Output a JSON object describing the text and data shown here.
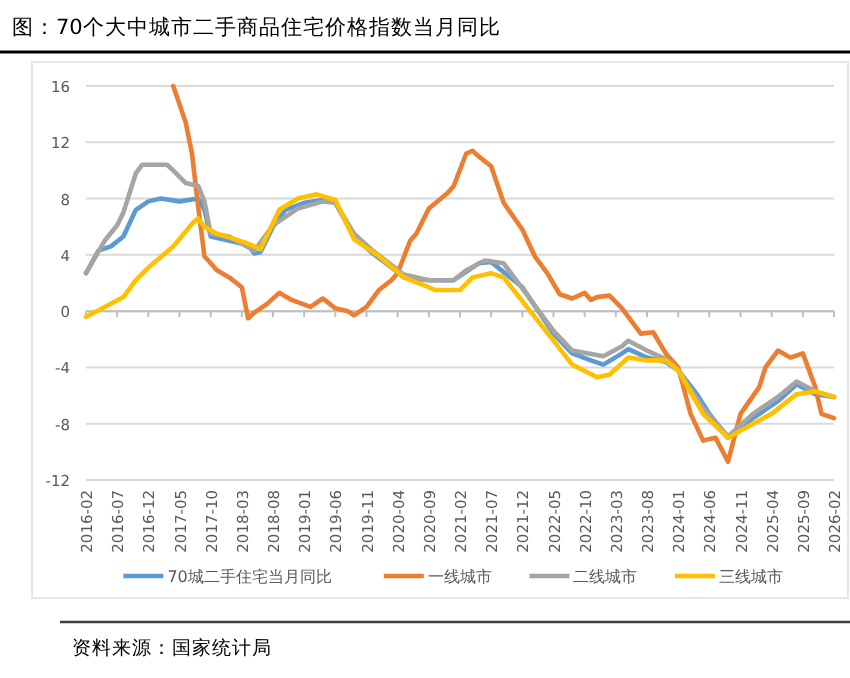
{
  "chart_data": {
    "type": "line",
    "title": "图：70个大中城市二手商品住宅价格指数当月同比",
    "annotations": [
      "资料来源：国家统计局"
    ],
    "xlim": [
      "2016-02",
      "2026-02"
    ],
    "xticks": [
      "2016-02",
      "2016-07",
      "2016-12",
      "2017-05",
      "2017-10",
      "2018-03",
      "2018-08",
      "2019-01",
      "2019-06",
      "2019-11",
      "2020-04",
      "2020-09",
      "2021-02",
      "2021-07",
      "2021-12",
      "2022-05",
      "2022-10",
      "2023-03",
      "2023-08",
      "2024-01",
      "2024-06",
      "2024-11",
      "2025-04",
      "2025-09",
      "2026-02"
    ],
    "ylim": [
      -12,
      16
    ],
    "yticks": [
      -12,
      -8,
      -4,
      0,
      4,
      8,
      12,
      16
    ],
    "grid": "y",
    "legend": "bottom",
    "marker": "none",
    "line_style": "solid",
    "series": [
      {
        "name": "70城二手住宅当月同比",
        "color": "#5b9bd5",
        "x": [
          "2016-02",
          "2016-04",
          "2016-06",
          "2016-08",
          "2016-10",
          "2016-12",
          "2017-02",
          "2017-05",
          "2017-08",
          "2017-09",
          "2017-10",
          "2018-01",
          "2018-04",
          "2018-05",
          "2018-06",
          "2018-08",
          "2018-10",
          "2019-01",
          "2019-04",
          "2019-06",
          "2019-09",
          "2019-12",
          "2020-03",
          "2020-05",
          "2020-09",
          "2021-01",
          "2021-05",
          "2021-07",
          "2021-12",
          "2022-05",
          "2022-08",
          "2022-11",
          "2023-01",
          "2023-04",
          "2023-05",
          "2023-08",
          "2023-11",
          "2024-01",
          "2024-04",
          "2024-06",
          "2024-09",
          "2025-01",
          "2025-05",
          "2025-08",
          "2025-11",
          "2026-02"
        ],
        "values": [
          2.7,
          4.3,
          4.6,
          5.3,
          7.2,
          7.8,
          8.0,
          7.8,
          8.0,
          7.2,
          5.3,
          5.0,
          4.7,
          4.1,
          4.2,
          6.0,
          7.2,
          7.7,
          7.9,
          7.7,
          5.3,
          4.1,
          3.1,
          2.4,
          2.2,
          2.2,
          3.4,
          3.5,
          1.7,
          -1.6,
          -3.0,
          -3.5,
          -3.8,
          -3.0,
          -2.7,
          -3.3,
          -3.6,
          -4.2,
          -5.9,
          -7.3,
          -9.0,
          -7.6,
          -6.4,
          -5.2,
          -5.9,
          -6.1
        ]
      },
      {
        "name": "一线城市",
        "color": "#ed7d31",
        "x": [
          "2017-04",
          "2017-06",
          "2017-07",
          "2017-08",
          "2017-09",
          "2017-11",
          "2018-01",
          "2018-03",
          "2018-04",
          "2018-05",
          "2018-07",
          "2018-09",
          "2018-11",
          "2019-02",
          "2019-04",
          "2019-06",
          "2019-08",
          "2019-09",
          "2019-11",
          "2020-01",
          "2020-03",
          "2020-04",
          "2020-06",
          "2020-07",
          "2020-09",
          "2020-12",
          "2021-01",
          "2021-03",
          "2021-04",
          "2021-05",
          "2021-07",
          "2021-09",
          "2021-12",
          "2022-02",
          "2022-04",
          "2022-06",
          "2022-08",
          "2022-10",
          "2022-11",
          "2022-12",
          "2023-02",
          "2023-04",
          "2023-07",
          "2023-09",
          "2023-11",
          "2024-01",
          "2024-03",
          "2024-05",
          "2024-07",
          "2024-09",
          "2024-11",
          "2025-02",
          "2025-03",
          "2025-05",
          "2025-07",
          "2025-09",
          "2025-11",
          "2025-12",
          "2026-02"
        ],
        "values": [
          16.0,
          13.4,
          11.2,
          7.4,
          3.9,
          2.9,
          2.4,
          1.7,
          -0.5,
          -0.1,
          0.5,
          1.3,
          0.8,
          0.3,
          0.9,
          0.2,
          0.0,
          -0.3,
          0.3,
          1.5,
          2.2,
          2.7,
          5.0,
          5.5,
          7.3,
          8.4,
          8.9,
          11.2,
          11.4,
          11.0,
          10.3,
          7.7,
          5.8,
          3.9,
          2.7,
          1.2,
          0.9,
          1.3,
          0.8,
          1.0,
          1.1,
          0.2,
          -1.6,
          -1.5,
          -3.0,
          -4.0,
          -7.3,
          -9.2,
          -9.0,
          -10.7,
          -7.3,
          -5.4,
          -4.0,
          -2.8,
          -3.3,
          -3.0,
          -5.4,
          -7.3,
          -7.6
        ]
      },
      {
        "name": "二线城市",
        "color": "#a5a5a5",
        "x": [
          "2016-02",
          "2016-05",
          "2016-07",
          "2016-08",
          "2016-10",
          "2016-11",
          "2017-03",
          "2017-04",
          "2017-06",
          "2017-08",
          "2017-09",
          "2017-10",
          "2018-01",
          "2018-05",
          "2018-08",
          "2018-12",
          "2019-04",
          "2019-06",
          "2019-09",
          "2019-12",
          "2020-05",
          "2020-09",
          "2021-01",
          "2021-03",
          "2021-06",
          "2021-09",
          "2022-05",
          "2022-08",
          "2023-01",
          "2023-04",
          "2023-05",
          "2023-08",
          "2023-11",
          "2024-01",
          "2024-05",
          "2024-09",
          "2025-01",
          "2025-05",
          "2025-08",
          "2025-11",
          "2026-02"
        ],
        "values": [
          2.7,
          5.0,
          6.1,
          7.0,
          9.8,
          10.4,
          10.4,
          10.0,
          9.1,
          8.9,
          7.8,
          5.5,
          5.3,
          4.3,
          6.1,
          7.3,
          7.8,
          7.7,
          5.5,
          4.3,
          2.6,
          2.2,
          2.2,
          2.9,
          3.6,
          3.4,
          -1.4,
          -2.8,
          -3.2,
          -2.5,
          -2.1,
          -2.8,
          -3.4,
          -4.2,
          -6.9,
          -8.9,
          -7.3,
          -6.1,
          -5.0,
          -5.7,
          -6.1
        ]
      },
      {
        "name": "三线城市",
        "color": "#ffc000",
        "x": [
          "2016-02",
          "2016-05",
          "2016-08",
          "2016-10",
          "2016-12",
          "2017-04",
          "2017-07",
          "2017-08",
          "2017-09",
          "2017-11",
          "2018-02",
          "2018-04",
          "2018-06",
          "2018-09",
          "2018-12",
          "2019-03",
          "2019-06",
          "2019-09",
          "2020-01",
          "2020-05",
          "2020-09",
          "2020-10",
          "2021-02",
          "2021-04",
          "2021-07",
          "2021-09",
          "2022-05",
          "2022-08",
          "2022-12",
          "2023-02",
          "2023-05",
          "2023-08",
          "2023-11",
          "2024-01",
          "2024-05",
          "2024-09",
          "2025-01",
          "2025-04",
          "2025-08",
          "2025-11",
          "2026-02"
        ],
        "values": [
          -0.4,
          0.3,
          1.0,
          2.2,
          3.1,
          4.6,
          6.2,
          6.6,
          6.0,
          5.5,
          5.1,
          4.8,
          4.4,
          7.2,
          8.0,
          8.3,
          7.9,
          5.1,
          3.9,
          2.4,
          1.7,
          1.5,
          1.5,
          2.4,
          2.7,
          2.4,
          -2.1,
          -3.8,
          -4.7,
          -4.5,
          -3.3,
          -3.5,
          -3.5,
          -4.2,
          -7.3,
          -9.0,
          -8.0,
          -7.3,
          -5.9,
          -5.7,
          -6.1
        ]
      }
    ]
  }
}
